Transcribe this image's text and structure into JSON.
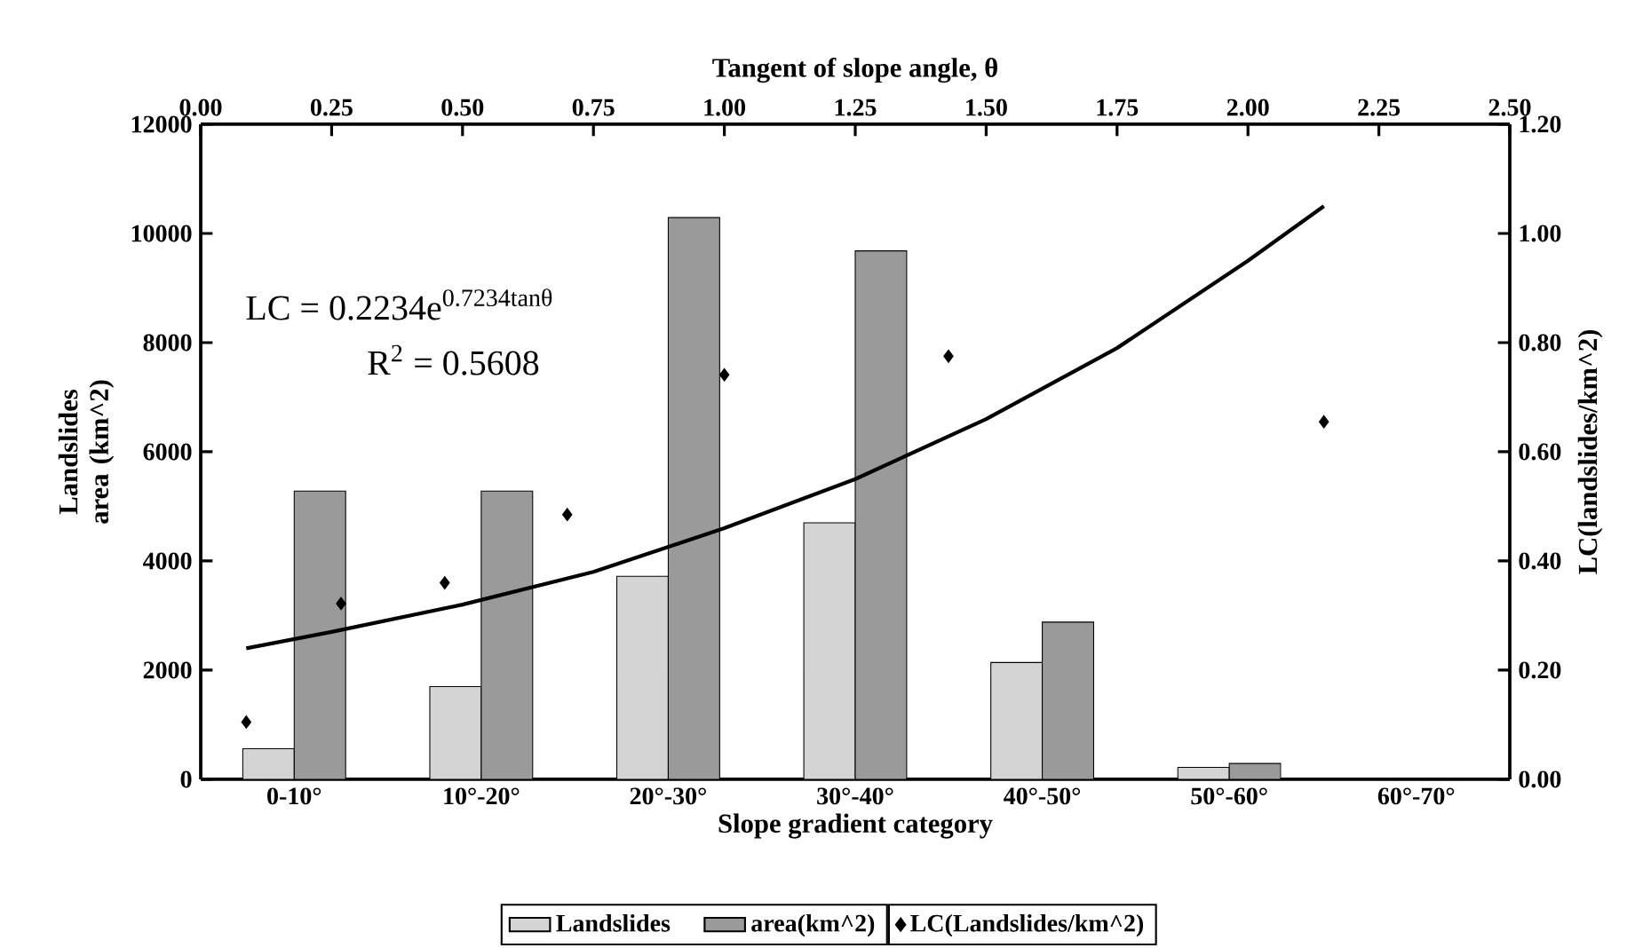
{
  "chart_data": [
    {
      "type": "bar",
      "xlabel": "Slope gradient category",
      "ylabel": "Landslides area (km^2)",
      "categories": [
        "0-10°",
        "10°-20°",
        "20°-30°",
        "30°-40°",
        "40°-50°",
        "50°-60°",
        "60°-70°"
      ],
      "ylim": [
        0,
        12000
      ],
      "yticks": [
        0,
        2000,
        4000,
        6000,
        8000,
        10000,
        12000
      ],
      "legend": "bottom",
      "series": [
        {
          "name": "Landslides",
          "color": "#d4d4d4",
          "values": [
            560,
            1700,
            3720,
            4700,
            2140,
            220,
            null
          ]
        },
        {
          "name": "area(km^2)",
          "color": "#9a9a9a",
          "values": [
            5280,
            5280,
            10290,
            9680,
            2880,
            290,
            null
          ]
        }
      ]
    },
    {
      "type": "scatter",
      "xlabel": "Tangent of slope angle, θ",
      "ylabel": "LC(landslides/km^2)",
      "xlim": [
        0,
        2.5
      ],
      "xticks": [
        {
          "value": 0,
          "label": "0.00"
        },
        {
          "value": 0.25,
          "label": "0.25"
        },
        {
          "value": 0.5,
          "label": "0.50"
        },
        {
          "value": 0.75,
          "label": "0.75"
        },
        {
          "value": 1,
          "label": "1.00"
        },
        {
          "value": 1.25,
          "label": "1.25"
        },
        {
          "value": 1.5,
          "label": "1.50"
        },
        {
          "value": 1.75,
          "label": "1.75"
        },
        {
          "value": 2,
          "label": "2.00"
        },
        {
          "value": 2.25,
          "label": "2.25"
        },
        {
          "value": 2.5,
          "label": "2.50"
        }
      ],
      "ylim": [
        0,
        1.2
      ],
      "yticks": [
        {
          "value": 0,
          "label": "0.00"
        },
        {
          "value": 0.2,
          "label": "0.20"
        },
        {
          "value": 0.4,
          "label": "0.40"
        },
        {
          "value": 0.6,
          "label": "0.60"
        },
        {
          "value": 0.8,
          "label": "0.80"
        },
        {
          "value": 1,
          "label": "1.00"
        },
        {
          "value": 1.2,
          "label": "1.20"
        }
      ],
      "legend": "bottom",
      "series": [
        {
          "name": "LC(Landslides/km^2)",
          "color": "#000000",
          "marker": "diamond",
          "x": [
            0.087,
            0.268,
            0.466,
            0.7,
            1.0,
            1.428,
            2.145
          ],
          "values": [
            0.105,
            0.322,
            0.36,
            0.485,
            0.741,
            0.775,
            0.655
          ]
        },
        {
          "type": "line",
          "color": "#000000",
          "line_style": "solid",
          "x": [
            0.087,
            0.25,
            0.5,
            0.75,
            1.0,
            1.25,
            1.5,
            1.75,
            2.0,
            2.145
          ],
          "values": [
            0.24,
            0.27,
            0.32,
            0.38,
            0.46,
            0.55,
            0.66,
            0.79,
            0.95,
            1.05
          ]
        }
      ],
      "annotations": [
        "\\text{LC = 0.2234e}^{\\text{0.7234tanθ}}",
        "\\text{R}^{\\text{2}}\\text{ = 0.5608}"
      ]
    }
  ]
}
